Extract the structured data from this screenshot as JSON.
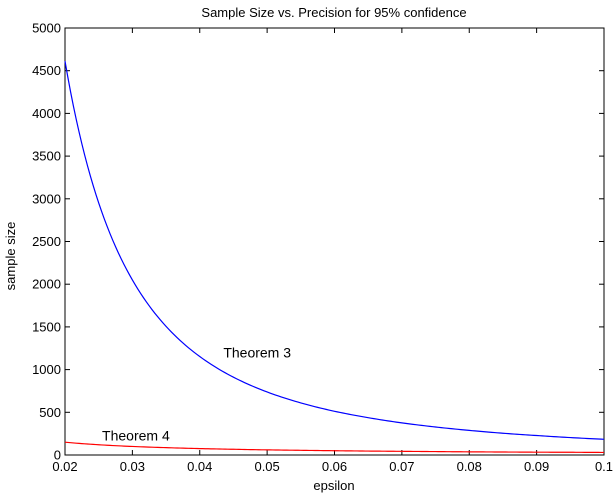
{
  "chart_data": {
    "type": "line",
    "title": "Sample Size vs. Precision for 95% confidence",
    "xlabel": "epsilon",
    "ylabel": "sample size",
    "xlim": [
      0.02,
      0.1
    ],
    "ylim": [
      0,
      5000
    ],
    "x_ticks": [
      "0.02",
      "0.03",
      "0.04",
      "0.05",
      "0.06",
      "0.07",
      "0.08",
      "0.09",
      "0.1"
    ],
    "y_ticks": [
      "0",
      "500",
      "1000",
      "1500",
      "2000",
      "2500",
      "3000",
      "3500",
      "4000",
      "4500",
      "5000"
    ],
    "grid": false,
    "series": [
      {
        "name": "Theorem 3",
        "color": "#0000ff",
        "x": [
          0.02,
          0.025,
          0.03,
          0.035,
          0.04,
          0.045,
          0.05,
          0.055,
          0.06,
          0.065,
          0.07,
          0.075,
          0.08,
          0.085,
          0.09,
          0.095,
          0.1
        ],
        "y": [
          4612,
          2952,
          2050,
          1506,
          1153,
          911,
          738,
          610,
          512,
          437,
          376,
          328,
          288,
          255,
          228,
          204,
          184
        ]
      },
      {
        "name": "Theorem 4",
        "color": "#ff0000",
        "x": [
          0.02,
          0.025,
          0.03,
          0.035,
          0.04,
          0.045,
          0.05,
          0.055,
          0.06,
          0.065,
          0.07,
          0.075,
          0.08,
          0.085,
          0.09,
          0.095,
          0.1
        ],
        "y": [
          150,
          120,
          100,
          86,
          75,
          67,
          60,
          55,
          50,
          46,
          43,
          40,
          37,
          35,
          33,
          32,
          30
        ]
      }
    ],
    "annotations": [
      {
        "text": "Theorem 3",
        "x": 0.0435,
        "y": 1200
      },
      {
        "text": "Theorem 4",
        "x": 0.0255,
        "y": 230
      }
    ]
  }
}
